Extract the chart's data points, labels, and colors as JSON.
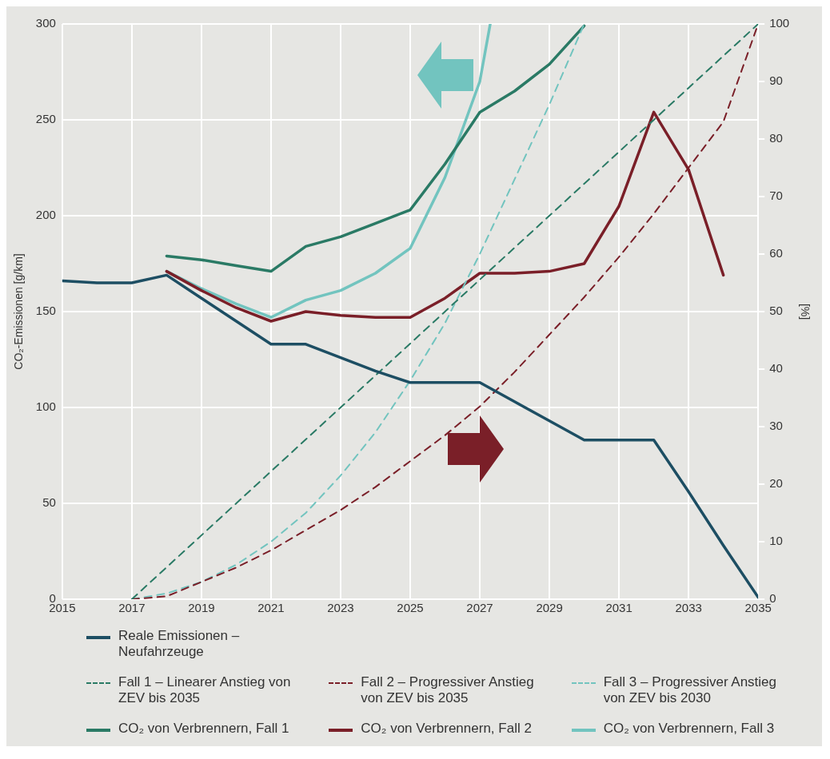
{
  "chart_data": {
    "type": "line",
    "xlabel": null,
    "ylabel": "CO₂-Emissionen [g/km]",
    "y2label": "[%]",
    "xlim": [
      2015,
      2035
    ],
    "xticks": [
      2015,
      2017,
      2019,
      2021,
      2023,
      2025,
      2027,
      2029,
      2031,
      2033,
      2035
    ],
    "ylim": [
      0,
      300
    ],
    "yticks": [
      0,
      50,
      100,
      150,
      200,
      250,
      300
    ],
    "y2lim": [
      0,
      100
    ],
    "y2ticks": [
      0,
      10,
      20,
      30,
      40,
      50,
      60,
      70,
      80,
      90,
      100
    ],
    "grid": true,
    "legend": "bottom",
    "marker": "none",
    "series": [
      {
        "name": "Reale Emissionen – Neufahrzeuge",
        "color": "#1d4e63",
        "line_style": "solid",
        "x": [
          2015,
          2016,
          2017,
          2018,
          2019,
          2020,
          2021,
          2022,
          2023,
          2024,
          2025,
          2026,
          2027,
          2028,
          2029,
          2030,
          2031,
          2032,
          2033,
          2034,
          2035
        ],
        "values": [
          166,
          165,
          165,
          169,
          157,
          145,
          133,
          133,
          126,
          119,
          113,
          113,
          113,
          103,
          93,
          83,
          83,
          83,
          56,
          28,
          1
        ]
      },
      {
        "name": "Fall 1 – Linearer Anstieg von ZEV bis 2035",
        "color": "#2a7a65",
        "line_style": "dashed",
        "axis": "y2",
        "x": [
          2017,
          2035
        ],
        "values": [
          0,
          100
        ]
      },
      {
        "name": "Fall 2 – Progressiver Anstieg von ZEV bis 2035",
        "color": "#7a1f28",
        "line_style": "dashed",
        "axis": "y2",
        "x": [
          2017,
          2018,
          2019,
          2020,
          2021,
          2022,
          2023,
          2024,
          2025,
          2026,
          2027,
          2028,
          2029,
          2030,
          2031,
          2032,
          2033,
          2034,
          2035
        ],
        "values": [
          0,
          0.5,
          3,
          5.5,
          8.5,
          12,
          15.5,
          19.5,
          24,
          28.5,
          33.5,
          39.5,
          46,
          52.5,
          59.5,
          67,
          75,
          83,
          100
        ]
      },
      {
        "name": "Fall 3 – Progressiver Anstieg von ZEV bis 2030",
        "color": "#72c4bf",
        "line_style": "dashed",
        "axis": "y2",
        "x": [
          2017,
          2018,
          2019,
          2020,
          2021,
          2022,
          2023,
          2024,
          2025,
          2026,
          2027,
          2028,
          2029,
          2030
        ],
        "values": [
          0,
          1,
          3,
          6,
          10,
          15,
          21.5,
          29,
          38,
          48,
          60,
          73,
          86,
          100
        ]
      },
      {
        "name": "CO₂ von Verbrennern, Fall 1",
        "color": "#2a7a65",
        "line_style": "solid",
        "x": [
          2018,
          2019,
          2020,
          2021,
          2022,
          2023,
          2024,
          2025,
          2026,
          2027,
          2028,
          2029,
          2030
        ],
        "values": [
          179,
          177,
          174,
          171,
          184,
          189,
          196,
          203,
          227,
          254,
          265,
          279,
          299
        ]
      },
      {
        "name": "CO₂ von Verbrennern, Fall 2",
        "color": "#7a1f28",
        "line_style": "solid",
        "x": [
          2018,
          2019,
          2020,
          2021,
          2022,
          2023,
          2024,
          2025,
          2026,
          2027,
          2028,
          2029,
          2030,
          2031,
          2032,
          2033,
          2034
        ],
        "values": [
          171,
          161,
          152,
          145,
          150,
          148,
          147,
          147,
          157,
          170,
          170,
          171,
          175,
          205,
          254,
          224,
          169
        ]
      },
      {
        "name": "CO₂ von Verbrennern, Fall 3",
        "color": "#72c4bf",
        "line_style": "solid",
        "x": [
          2018,
          2019,
          2020,
          2021,
          2022,
          2023,
          2024,
          2025,
          2026,
          2027,
          2027.3
        ],
        "values": [
          171,
          162,
          154,
          147,
          156,
          161,
          170,
          183,
          220,
          270,
          300
        ]
      }
    ]
  }
}
